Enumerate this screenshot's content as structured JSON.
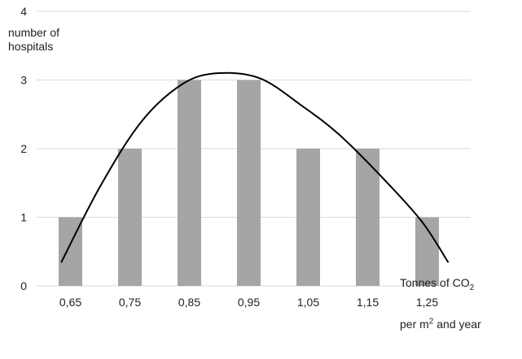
{
  "chart_data": {
    "type": "bar",
    "categories": [
      "0,65",
      "0,75",
      "0,85",
      "0,95",
      "1,05",
      "1,15",
      "1,25"
    ],
    "values": [
      1,
      2,
      3,
      3,
      2,
      2,
      1
    ],
    "y_ticks": [
      "0",
      "1",
      "2",
      "3",
      "4"
    ],
    "ylim": [
      0,
      4
    ],
    "ylabel_lines": [
      "number of",
      "hospitals"
    ],
    "xlabel_parts": {
      "line1": "Tonnes of CO",
      "line1_sub": "2",
      "line2_a": "per m",
      "line2_sup": "2",
      "line2_b": " and year"
    },
    "grid": true,
    "colors": {
      "bar": "#a5a5a5",
      "grid": "#d9d9d9",
      "curve": "#000000",
      "text": "#222222"
    },
    "overlay_curve": {
      "type": "smooth-curve",
      "points": [
        [
          0.635,
          0.35
        ],
        [
          0.7,
          1.45
        ],
        [
          0.77,
          2.4
        ],
        [
          0.84,
          2.95
        ],
        [
          0.9,
          3.1
        ],
        [
          0.97,
          3.02
        ],
        [
          1.04,
          2.62
        ],
        [
          1.1,
          2.22
        ],
        [
          1.17,
          1.62
        ],
        [
          1.24,
          0.95
        ],
        [
          1.285,
          0.35
        ]
      ]
    }
  }
}
